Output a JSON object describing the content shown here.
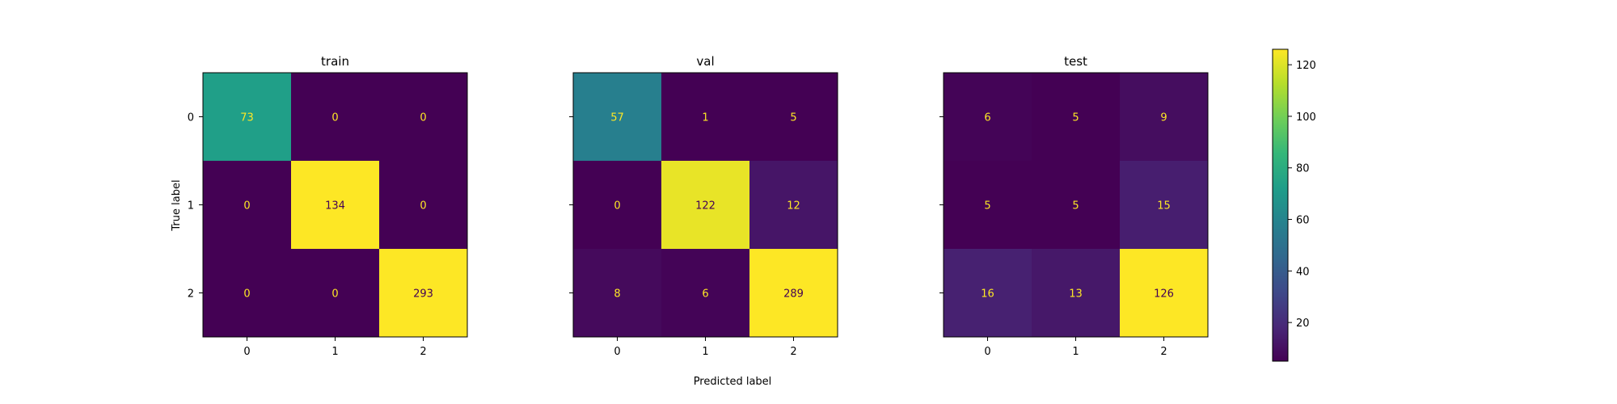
{
  "chart_data": [
    {
      "type": "heatmap",
      "title": "train",
      "x_categories": [
        "0",
        "1",
        "2"
      ],
      "y_categories": [
        "0",
        "1",
        "2"
      ],
      "values": [
        [
          73,
          0,
          0
        ],
        [
          0,
          134,
          0
        ],
        [
          0,
          0,
          293
        ]
      ]
    },
    {
      "type": "heatmap",
      "title": "val",
      "x_categories": [
        "0",
        "1",
        "2"
      ],
      "y_categories": [
        "0",
        "1",
        "2"
      ],
      "values": [
        [
          57,
          1,
          5
        ],
        [
          0,
          122,
          12
        ],
        [
          8,
          6,
          289
        ]
      ]
    },
    {
      "type": "heatmap",
      "title": "test",
      "x_categories": [
        "0",
        "1",
        "2"
      ],
      "y_categories": [
        "0",
        "1",
        "2"
      ],
      "values": [
        [
          6,
          5,
          9
        ],
        [
          5,
          5,
          15
        ],
        [
          16,
          13,
          126
        ]
      ]
    }
  ],
  "labels": {
    "ylabel": "True label",
    "xlabel": "Predicted label"
  },
  "colorbar": {
    "colormap": "viridis",
    "min": 5,
    "max": 126,
    "ticks": [
      20,
      40,
      60,
      80,
      100,
      120
    ]
  },
  "colors": {
    "text_on_dark": "#fde725",
    "text_on_light": "#440154"
  }
}
